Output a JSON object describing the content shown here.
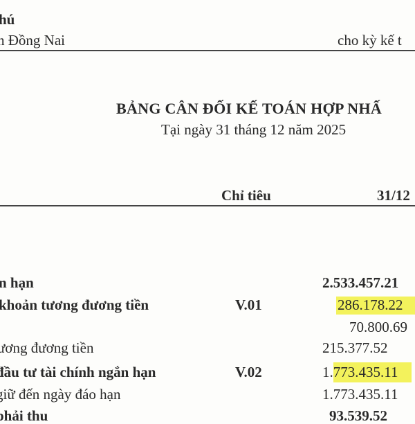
{
  "header": {
    "company_fragment": "hú",
    "address_fragment": "h Đồng Nai",
    "period_fragment": "cho kỳ kế t"
  },
  "title": "BẢNG CÂN ĐỐI KẾ TOÁN HỢP NHẤ",
  "subtitle": "Tại ngày 31 tháng 12 năm 2025",
  "columns": {
    "item": "Chỉ tiêu",
    "date": "31/12"
  },
  "highlight_color": "#f3f25c",
  "rows": [
    {
      "label": "n hạn",
      "note": "",
      "value": "2.533.457.21",
      "bold": true
    },
    {
      "label": "khoản tương đương tiền",
      "note": "V.01",
      "value": "286.178.22",
      "bold": true,
      "highlight": "full"
    },
    {
      "label": "",
      "note": "",
      "value": "70.800.69",
      "bold": false
    },
    {
      "label": "ương đương tiền",
      "note": "",
      "value": "215.377.52",
      "bold": false
    },
    {
      "label": "đầu tư tài chính ngắn hạn",
      "note": "V.02",
      "value_prefix": "1.",
      "value": "773.435.11",
      "bold": true,
      "highlight": "partial"
    },
    {
      "label": "giữ đến ngày đáo hạn",
      "note": "",
      "value": "1.773.435.11",
      "bold": false
    },
    {
      "label": "phải thu",
      "note": "",
      "value": "93.539.52",
      "bold": true
    }
  ]
}
